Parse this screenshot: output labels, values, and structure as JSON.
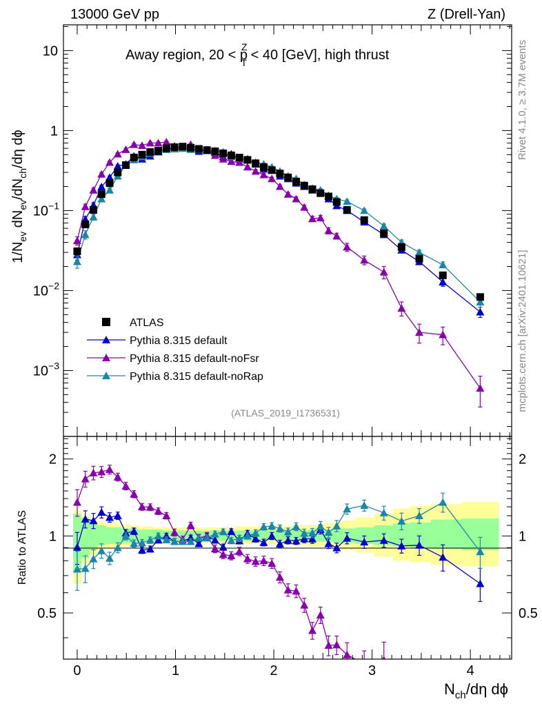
{
  "header": {
    "energy_label": "13000 GeV pp",
    "process_label": "Z (Drell-Yan)"
  },
  "side_labels": {
    "rivet": "Rivet 4.1.0, ≥ 3.7M events",
    "mcplots": "mcplots.cern.ch [arXiv:2401.10621]"
  },
  "chart_data": {
    "type": "line",
    "title_parts": {
      "before": "Away region, 20 < p",
      "sup": "Z",
      "sub": "T",
      "after": " < 40 [GeV], high thrust"
    },
    "analysis_id": "(ATLAS_2019_I1736531)",
    "ylabel_parts": {
      "a": "1/N",
      "a_sub": "ev",
      "b": " dN",
      "b_sub": "ev",
      "c": "/dN",
      "c_sub": "ch",
      "d": "/dη dϕ"
    },
    "xlabel_parts": {
      "a": "N",
      "a_sub": "ch",
      "b": "/dη dϕ"
    },
    "ratio_ylabel": "Ratio to ATLAS",
    "x_ticks": [
      "0",
      "1",
      "2",
      "3",
      "4"
    ],
    "y_ticks_main": [
      {
        "value": 10,
        "base": "10",
        "exp": ""
      },
      {
        "value": 1,
        "base": "1",
        "exp": ""
      },
      {
        "value": 0.1,
        "base": "10",
        "exp": "−1"
      },
      {
        "value": 0.01,
        "base": "10",
        "exp": "−2"
      },
      {
        "value": 0.001,
        "base": "10",
        "exp": "−3"
      }
    ],
    "y_ticks_ratio": [
      "2",
      "1",
      "0.5"
    ],
    "xlim": [
      -0.14,
      4.42
    ],
    "ylim_main": [
      0.00015,
      21
    ],
    "ylim_ratio": [
      0.33,
      2.45
    ],
    "legend_position": "lower-left",
    "x": [
      0.0,
      0.0825,
      0.165,
      0.2475,
      0.33,
      0.4125,
      0.495,
      0.5775,
      0.66,
      0.7425,
      0.825,
      0.9075,
      0.99,
      1.0725,
      1.155,
      1.2375,
      1.32,
      1.4025,
      1.485,
      1.5675,
      1.65,
      1.7325,
      1.815,
      1.8975,
      1.98,
      2.0625,
      2.145,
      2.2275,
      2.31,
      2.3925,
      2.475,
      2.5575,
      2.64,
      2.745,
      2.92,
      3.12,
      3.3,
      3.48,
      3.72,
      4.1
    ],
    "series": [
      {
        "name": "ATLAS",
        "color": "#000000",
        "marker": "square",
        "values": [
          0.031,
          0.067,
          0.102,
          0.16,
          0.22,
          0.3,
          0.37,
          0.46,
          0.5,
          0.54,
          0.56,
          0.6,
          0.62,
          0.63,
          0.61,
          0.59,
          0.57,
          0.55,
          0.52,
          0.49,
          0.46,
          0.43,
          0.39,
          0.35,
          0.32,
          0.29,
          0.26,
          0.23,
          0.205,
          0.185,
          0.165,
          0.15,
          0.128,
          0.102,
          0.076,
          0.052,
          0.035,
          0.025,
          0.0155,
          0.0083
        ],
        "band_inner": [
          [
            0.72,
            1.22
          ],
          [
            0.82,
            1.18
          ],
          [
            0.88,
            1.14
          ],
          [
            0.92,
            1.1
          ],
          [
            0.93,
            1.08
          ],
          [
            0.93,
            1.08
          ],
          [
            0.94,
            1.07
          ],
          [
            0.94,
            1.07
          ],
          [
            0.95,
            1.06
          ],
          [
            0.95,
            1.06
          ],
          [
            0.95,
            1.06
          ],
          [
            0.96,
            1.05
          ],
          [
            0.96,
            1.05
          ],
          [
            0.96,
            1.05
          ],
          [
            0.96,
            1.05
          ],
          [
            0.96,
            1.05
          ],
          [
            0.96,
            1.05
          ],
          [
            0.96,
            1.05
          ],
          [
            0.96,
            1.05
          ],
          [
            0.96,
            1.05
          ],
          [
            0.96,
            1.05
          ],
          [
            0.96,
            1.05
          ],
          [
            0.96,
            1.05
          ],
          [
            0.96,
            1.05
          ],
          [
            0.96,
            1.05
          ],
          [
            0.96,
            1.05
          ],
          [
            0.96,
            1.05
          ],
          [
            0.96,
            1.05
          ],
          [
            0.96,
            1.05
          ],
          [
            0.95,
            1.06
          ],
          [
            0.95,
            1.06
          ],
          [
            0.95,
            1.06
          ],
          [
            0.94,
            1.07
          ],
          [
            0.94,
            1.07
          ],
          [
            0.93,
            1.08
          ],
          [
            0.92,
            1.1
          ],
          [
            0.91,
            1.12
          ],
          [
            0.9,
            1.13
          ],
          [
            0.89,
            1.16
          ],
          [
            0.88,
            1.17
          ]
        ],
        "band_outer": [
          [
            0.65,
            1.26
          ],
          [
            0.78,
            1.2
          ],
          [
            0.84,
            1.17
          ],
          [
            0.88,
            1.14
          ],
          [
            0.9,
            1.12
          ],
          [
            0.9,
            1.12
          ],
          [
            0.91,
            1.11
          ],
          [
            0.92,
            1.1
          ],
          [
            0.92,
            1.09
          ],
          [
            0.93,
            1.09
          ],
          [
            0.93,
            1.08
          ],
          [
            0.93,
            1.08
          ],
          [
            0.94,
            1.08
          ],
          [
            0.94,
            1.08
          ],
          [
            0.94,
            1.08
          ],
          [
            0.94,
            1.08
          ],
          [
            0.94,
            1.08
          ],
          [
            0.94,
            1.08
          ],
          [
            0.93,
            1.08
          ],
          [
            0.93,
            1.08
          ],
          [
            0.93,
            1.09
          ],
          [
            0.93,
            1.09
          ],
          [
            0.93,
            1.09
          ],
          [
            0.93,
            1.09
          ],
          [
            0.93,
            1.09
          ],
          [
            0.92,
            1.09
          ],
          [
            0.92,
            1.09
          ],
          [
            0.92,
            1.1
          ],
          [
            0.92,
            1.1
          ],
          [
            0.91,
            1.1
          ],
          [
            0.91,
            1.11
          ],
          [
            0.9,
            1.12
          ],
          [
            0.89,
            1.13
          ],
          [
            0.88,
            1.15
          ],
          [
            0.86,
            1.18
          ],
          [
            0.83,
            1.22
          ],
          [
            0.8,
            1.28
          ],
          [
            0.79,
            1.31
          ],
          [
            0.77,
            1.33
          ],
          [
            0.76,
            1.36
          ]
        ]
      },
      {
        "name": "Pythia 8.315 default",
        "color": "#0000cc",
        "marker": "triangle",
        "values": [
          0.028,
          0.078,
          0.117,
          0.198,
          0.26,
          0.36,
          0.38,
          0.48,
          0.44,
          0.48,
          0.54,
          0.6,
          0.59,
          0.6,
          0.6,
          0.55,
          0.57,
          0.53,
          0.47,
          0.51,
          0.44,
          0.44,
          0.38,
          0.33,
          0.32,
          0.27,
          0.25,
          0.22,
          0.2,
          0.18,
          0.175,
          0.14,
          0.115,
          0.1,
          0.072,
          0.05,
          0.032,
          0.023,
          0.0128,
          0.0054
        ],
        "errors": [
          0.004,
          0.006,
          0.008,
          0.01,
          0.011,
          0.012,
          0.012,
          0.014,
          0.013,
          0.013,
          0.014,
          0.015,
          0.015,
          0.015,
          0.015,
          0.014,
          0.014,
          0.014,
          0.013,
          0.013,
          0.012,
          0.012,
          0.011,
          0.01,
          0.01,
          0.009,
          0.008,
          0.007,
          0.007,
          0.007,
          0.007,
          0.006,
          0.005,
          0.005,
          0.004,
          0.003,
          0.002,
          0.002,
          0.0015,
          0.0008
        ]
      },
      {
        "name": "Pythia 8.315 default-noFsr",
        "color": "#8800aa",
        "marker": "triangle",
        "values": [
          0.042,
          0.112,
          0.18,
          0.285,
          0.4,
          0.51,
          0.58,
          0.67,
          0.65,
          0.7,
          0.7,
          0.72,
          0.64,
          0.61,
          0.67,
          0.58,
          0.57,
          0.49,
          0.44,
          0.41,
          0.4,
          0.35,
          0.31,
          0.28,
          0.25,
          0.2,
          0.16,
          0.14,
          0.11,
          0.079,
          0.081,
          0.056,
          0.048,
          0.035,
          0.024,
          0.017,
          0.006,
          0.003,
          0.0028,
          0.0006
        ],
        "errors": [
          0.005,
          0.008,
          0.011,
          0.014,
          0.016,
          0.018,
          0.02,
          0.021,
          0.02,
          0.021,
          0.021,
          0.021,
          0.02,
          0.019,
          0.02,
          0.019,
          0.018,
          0.017,
          0.016,
          0.015,
          0.015,
          0.014,
          0.013,
          0.012,
          0.011,
          0.01,
          0.009,
          0.008,
          0.007,
          0.006,
          0.006,
          0.005,
          0.004,
          0.004,
          0.003,
          0.003,
          0.0012,
          0.0008,
          0.0007,
          0.00025
        ]
      },
      {
        "name": "Pythia 8.315 default-noRap",
        "color": "#1a87aa",
        "marker": "triangle",
        "values": [
          0.023,
          0.05,
          0.083,
          0.14,
          0.18,
          0.27,
          0.37,
          0.43,
          0.47,
          0.52,
          0.56,
          0.58,
          0.59,
          0.6,
          0.58,
          0.58,
          0.56,
          0.56,
          0.54,
          0.47,
          0.45,
          0.43,
          0.4,
          0.38,
          0.35,
          0.31,
          0.27,
          0.25,
          0.21,
          0.19,
          0.18,
          0.155,
          0.14,
          0.13,
          0.1,
          0.064,
          0.04,
          0.03,
          0.021,
          0.0072
        ],
        "errors": [
          0.004,
          0.006,
          0.007,
          0.009,
          0.01,
          0.012,
          0.013,
          0.014,
          0.014,
          0.015,
          0.015,
          0.015,
          0.015,
          0.015,
          0.015,
          0.015,
          0.015,
          0.015,
          0.014,
          0.013,
          0.013,
          0.012,
          0.012,
          0.011,
          0.011,
          0.01,
          0.009,
          0.009,
          0.008,
          0.008,
          0.008,
          0.007,
          0.007,
          0.006,
          0.005,
          0.004,
          0.003,
          0.002,
          0.0018,
          0.001
        ]
      }
    ]
  }
}
